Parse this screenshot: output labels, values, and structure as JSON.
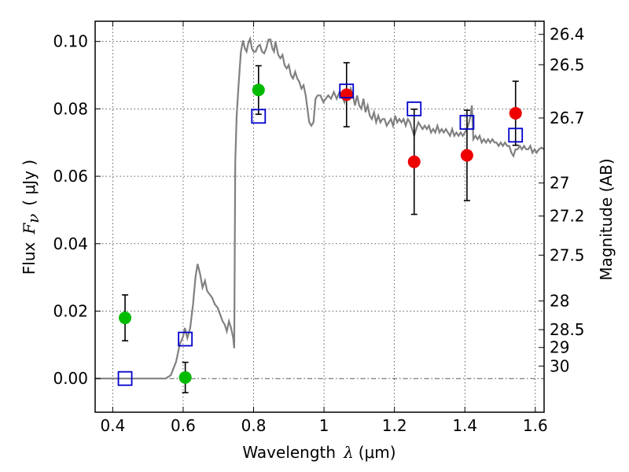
{
  "chart_data": {
    "type": "scatter",
    "xlabel_parts": {
      "prefix": "Wavelength",
      "symbol": "λ",
      "unit": "(μm)"
    },
    "ylabel_parts": {
      "prefix": "Flux",
      "symbol": "F",
      "subscript": "ν",
      "unit": "( μJy )"
    },
    "right_label": "Magnitude (AB)",
    "xlim": [
      0.35,
      1.625
    ],
    "ylim": [
      -0.01,
      0.106
    ],
    "grid": true,
    "x_ticks": [
      0.4,
      0.6,
      0.8,
      1.0,
      1.2,
      1.4,
      1.6
    ],
    "x_tick_labels": [
      "0.4",
      "0.6",
      "0.8",
      "1",
      "1.2",
      "1.4",
      "1.6"
    ],
    "y_ticks": [
      0.0,
      0.02,
      0.04,
      0.06,
      0.08,
      0.1
    ],
    "y_tick_labels": [
      "0.00",
      "0.02",
      "0.04",
      "0.06",
      "0.08",
      "0.10"
    ],
    "mag_ticks": [
      {
        "y": 0.1021,
        "label": "26.4"
      },
      {
        "y": 0.0931,
        "label": "26.5"
      },
      {
        "y": 0.0773,
        "label": "26.7"
      },
      {
        "y": 0.058,
        "label": "27"
      },
      {
        "y": 0.0482,
        "label": "27.2"
      },
      {
        "y": 0.0366,
        "label": "27.5"
      },
      {
        "y": 0.023,
        "label": "28"
      },
      {
        "y": 0.0145,
        "label": "28.5"
      },
      {
        "y": 0.0092,
        "label": "29"
      },
      {
        "y": 0.0037,
        "label": "30"
      }
    ],
    "colors": {
      "green": "#00bb00",
      "red": "#ee0000",
      "blue": "#0000cc",
      "sed": "#808080"
    },
    "series": [
      {
        "kind": "green-points",
        "points": [
          {
            "x": 0.435,
            "y": 0.018,
            "err": 0.0068
          },
          {
            "x": 0.606,
            "y": 0.0003,
            "err": 0.0045
          },
          {
            "x": 0.814,
            "y": 0.0856,
            "err": 0.0072
          }
        ]
      },
      {
        "kind": "red-points",
        "points": [
          {
            "x": 1.064,
            "y": 0.0842,
            "err": 0.0095
          },
          {
            "x": 1.256,
            "y": 0.0643,
            "err": 0.0156
          },
          {
            "x": 1.406,
            "y": 0.0662,
            "err": 0.0134
          },
          {
            "x": 1.544,
            "y": 0.0787,
            "err": 0.0095
          }
        ]
      },
      {
        "kind": "blue-squares",
        "points": [
          {
            "x": 0.435,
            "y": 0.0
          },
          {
            "x": 0.606,
            "y": 0.0117
          },
          {
            "x": 0.814,
            "y": 0.0778
          },
          {
            "x": 1.064,
            "y": 0.0853
          },
          {
            "x": 1.256,
            "y": 0.08
          },
          {
            "x": 1.406,
            "y": 0.076
          },
          {
            "x": 1.544,
            "y": 0.0722
          }
        ]
      },
      {
        "kind": "sed-model",
        "points": [
          [
            0.35,
            0.0
          ],
          [
            0.55,
            0.0
          ],
          [
            0.565,
            0.001
          ],
          [
            0.58,
            0.005
          ],
          [
            0.59,
            0.01
          ],
          [
            0.6,
            0.0125
          ],
          [
            0.605,
            0.015
          ],
          [
            0.612,
            0.012
          ],
          [
            0.62,
            0.015
          ],
          [
            0.628,
            0.022
          ],
          [
            0.635,
            0.03
          ],
          [
            0.641,
            0.034
          ],
          [
            0.648,
            0.031
          ],
          [
            0.655,
            0.027
          ],
          [
            0.662,
            0.029
          ],
          [
            0.668,
            0.026
          ],
          [
            0.675,
            0.025
          ],
          [
            0.682,
            0.024
          ],
          [
            0.69,
            0.022
          ],
          [
            0.698,
            0.021
          ],
          [
            0.705,
            0.019
          ],
          [
            0.712,
            0.017
          ],
          [
            0.718,
            0.016
          ],
          [
            0.724,
            0.014
          ],
          [
            0.73,
            0.017
          ],
          [
            0.736,
            0.015
          ],
          [
            0.742,
            0.012
          ],
          [
            0.745,
            0.009
          ],
          [
            0.748,
            0.064
          ],
          [
            0.752,
            0.078
          ],
          [
            0.758,
            0.088
          ],
          [
            0.764,
            0.097
          ],
          [
            0.77,
            0.1003
          ],
          [
            0.775,
            0.098
          ],
          [
            0.78,
            0.097
          ],
          [
            0.785,
            0.0995
          ],
          [
            0.79,
            0.1008
          ],
          [
            0.795,
            0.098
          ],
          [
            0.8,
            0.097
          ],
          [
            0.806,
            0.097
          ],
          [
            0.812,
            0.0985
          ],
          [
            0.818,
            0.099
          ],
          [
            0.824,
            0.097
          ],
          [
            0.83,
            0.0965
          ],
          [
            0.836,
            0.098
          ],
          [
            0.842,
            0.1005
          ],
          [
            0.848,
            0.1006
          ],
          [
            0.853,
            0.098
          ],
          [
            0.858,
            0.097
          ],
          [
            0.862,
            0.1
          ],
          [
            0.866,
            0.098
          ],
          [
            0.87,
            0.096
          ],
          [
            0.876,
            0.095
          ],
          [
            0.882,
            0.096
          ],
          [
            0.888,
            0.093
          ],
          [
            0.894,
            0.092
          ],
          [
            0.9,
            0.093
          ],
          [
            0.906,
            0.09
          ],
          [
            0.912,
            0.089
          ],
          [
            0.918,
            0.091
          ],
          [
            0.924,
            0.089
          ],
          [
            0.93,
            0.088
          ],
          [
            0.936,
            0.086
          ],
          [
            0.942,
            0.087
          ],
          [
            0.948,
            0.084
          ],
          [
            0.953,
            0.08
          ],
          [
            0.958,
            0.076
          ],
          [
            0.964,
            0.075
          ],
          [
            0.97,
            0.076
          ],
          [
            0.976,
            0.083
          ],
          [
            0.982,
            0.084
          ],
          [
            0.99,
            0.084
          ],
          [
            0.998,
            0.082
          ],
          [
            1.005,
            0.083
          ],
          [
            1.012,
            0.084
          ],
          [
            1.02,
            0.083
          ],
          [
            1.028,
            0.085
          ],
          [
            1.036,
            0.083
          ],
          [
            1.044,
            0.085
          ],
          [
            1.05,
            0.084
          ],
          [
            1.058,
            0.082
          ],
          [
            1.064,
            0.085
          ],
          [
            1.07,
            0.083
          ],
          [
            1.076,
            0.086
          ],
          [
            1.082,
            0.084
          ],
          [
            1.088,
            0.081
          ],
          [
            1.094,
            0.084
          ],
          [
            1.1,
            0.081
          ],
          [
            1.106,
            0.08
          ],
          [
            1.112,
            0.083
          ],
          [
            1.118,
            0.079
          ],
          [
            1.124,
            0.081
          ],
          [
            1.13,
            0.078
          ],
          [
            1.136,
            0.077
          ],
          [
            1.142,
            0.079
          ],
          [
            1.148,
            0.076
          ],
          [
            1.154,
            0.078
          ],
          [
            1.16,
            0.076
          ],
          [
            1.166,
            0.077
          ],
          [
            1.172,
            0.077
          ],
          [
            1.178,
            0.075
          ],
          [
            1.184,
            0.076
          ],
          [
            1.19,
            0.077
          ],
          [
            1.196,
            0.075
          ],
          [
            1.202,
            0.078
          ],
          [
            1.208,
            0.076
          ],
          [
            1.214,
            0.077
          ],
          [
            1.22,
            0.076
          ],
          [
            1.226,
            0.077
          ],
          [
            1.232,
            0.075
          ],
          [
            1.238,
            0.077
          ],
          [
            1.244,
            0.076
          ],
          [
            1.25,
            0.074
          ],
          [
            1.256,
            0.072
          ],
          [
            1.262,
            0.074
          ],
          [
            1.268,
            0.076
          ],
          [
            1.274,
            0.075
          ],
          [
            1.28,
            0.074
          ],
          [
            1.286,
            0.075
          ],
          [
            1.292,
            0.074
          ],
          [
            1.298,
            0.075
          ],
          [
            1.304,
            0.073
          ],
          [
            1.31,
            0.074
          ],
          [
            1.316,
            0.073
          ],
          [
            1.322,
            0.075
          ],
          [
            1.328,
            0.073
          ],
          [
            1.334,
            0.074
          ],
          [
            1.34,
            0.073
          ],
          [
            1.346,
            0.074
          ],
          [
            1.352,
            0.073
          ],
          [
            1.358,
            0.072
          ],
          [
            1.364,
            0.074
          ],
          [
            1.37,
            0.072
          ],
          [
            1.376,
            0.073
          ],
          [
            1.382,
            0.072
          ],
          [
            1.388,
            0.073
          ],
          [
            1.394,
            0.072
          ],
          [
            1.4,
            0.073
          ],
          [
            1.406,
            0.074
          ],
          [
            1.412,
            0.076
          ],
          [
            1.416,
            0.078
          ],
          [
            1.42,
            0.081
          ],
          [
            1.424,
            0.071
          ],
          [
            1.43,
            0.072
          ],
          [
            1.436,
            0.071
          ],
          [
            1.442,
            0.072
          ],
          [
            1.448,
            0.07
          ],
          [
            1.454,
            0.071
          ],
          [
            1.46,
            0.07
          ],
          [
            1.466,
            0.071
          ],
          [
            1.472,
            0.07
          ],
          [
            1.478,
            0.071
          ],
          [
            1.484,
            0.07
          ],
          [
            1.49,
            0.07
          ],
          [
            1.496,
            0.069
          ],
          [
            1.502,
            0.07
          ],
          [
            1.508,
            0.069
          ],
          [
            1.514,
            0.07
          ],
          [
            1.52,
            0.069
          ],
          [
            1.526,
            0.069
          ],
          [
            1.532,
            0.067
          ],
          [
            1.538,
            0.066
          ],
          [
            1.544,
            0.068
          ],
          [
            1.55,
            0.068
          ],
          [
            1.556,
            0.069
          ],
          [
            1.562,
            0.068
          ],
          [
            1.568,
            0.069
          ],
          [
            1.574,
            0.068
          ],
          [
            1.58,
            0.068
          ],
          [
            1.586,
            0.069
          ],
          [
            1.592,
            0.067
          ],
          [
            1.598,
            0.068
          ],
          [
            1.604,
            0.067
          ],
          [
            1.61,
            0.068
          ],
          [
            1.618,
            0.0685
          ],
          [
            1.625,
            0.068
          ]
        ]
      }
    ]
  }
}
